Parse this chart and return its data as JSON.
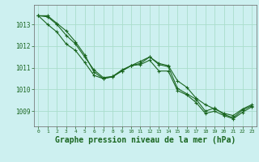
{
  "background_color": "#cdf0f0",
  "grid_color": "#aaddcc",
  "line_color": "#1a6620",
  "marker_color": "#1a6620",
  "xlabel": "Graphe pression niveau de la mer (hPa)",
  "xlabel_fontsize": 7,
  "xlabel_color": "#1a6620",
  "xtick_color": "#1a6620",
  "ytick_color": "#1a6620",
  "ylim": [
    1008.3,
    1013.9
  ],
  "xlim": [
    -0.5,
    23.5
  ],
  "yticks": [
    1009,
    1010,
    1011,
    1012,
    1013
  ],
  "xticks": [
    0,
    1,
    2,
    3,
    4,
    5,
    6,
    7,
    8,
    9,
    10,
    11,
    12,
    13,
    14,
    15,
    16,
    17,
    18,
    19,
    20,
    21,
    22,
    23
  ],
  "series": [
    [
      1013.4,
      1013.4,
      1013.05,
      1012.7,
      1012.2,
      1011.6,
      1010.8,
      1010.5,
      1010.6,
      1010.9,
      1011.1,
      1011.3,
      1011.5,
      1011.2,
      1011.1,
      1010.4,
      1010.1,
      1009.6,
      1009.3,
      1009.1,
      1008.9,
      1008.8,
      1009.1,
      1009.3
    ],
    [
      1013.4,
      1013.35,
      1013.0,
      1012.5,
      1012.1,
      1011.5,
      1010.9,
      1010.55,
      1010.6,
      1010.85,
      1011.1,
      1011.2,
      1011.5,
      1011.15,
      1011.05,
      1010.05,
      1009.8,
      1009.55,
      1009.0,
      1009.15,
      1008.85,
      1008.7,
      1009.05,
      1009.25
    ],
    [
      1013.4,
      1013.0,
      1012.65,
      1012.1,
      1011.8,
      1011.25,
      1010.65,
      1010.5,
      1010.58,
      1010.85,
      1011.1,
      1011.15,
      1011.35,
      1010.85,
      1010.85,
      1009.95,
      1009.75,
      1009.4,
      1008.9,
      1009.0,
      1008.8,
      1008.65,
      1008.95,
      1009.2
    ]
  ]
}
